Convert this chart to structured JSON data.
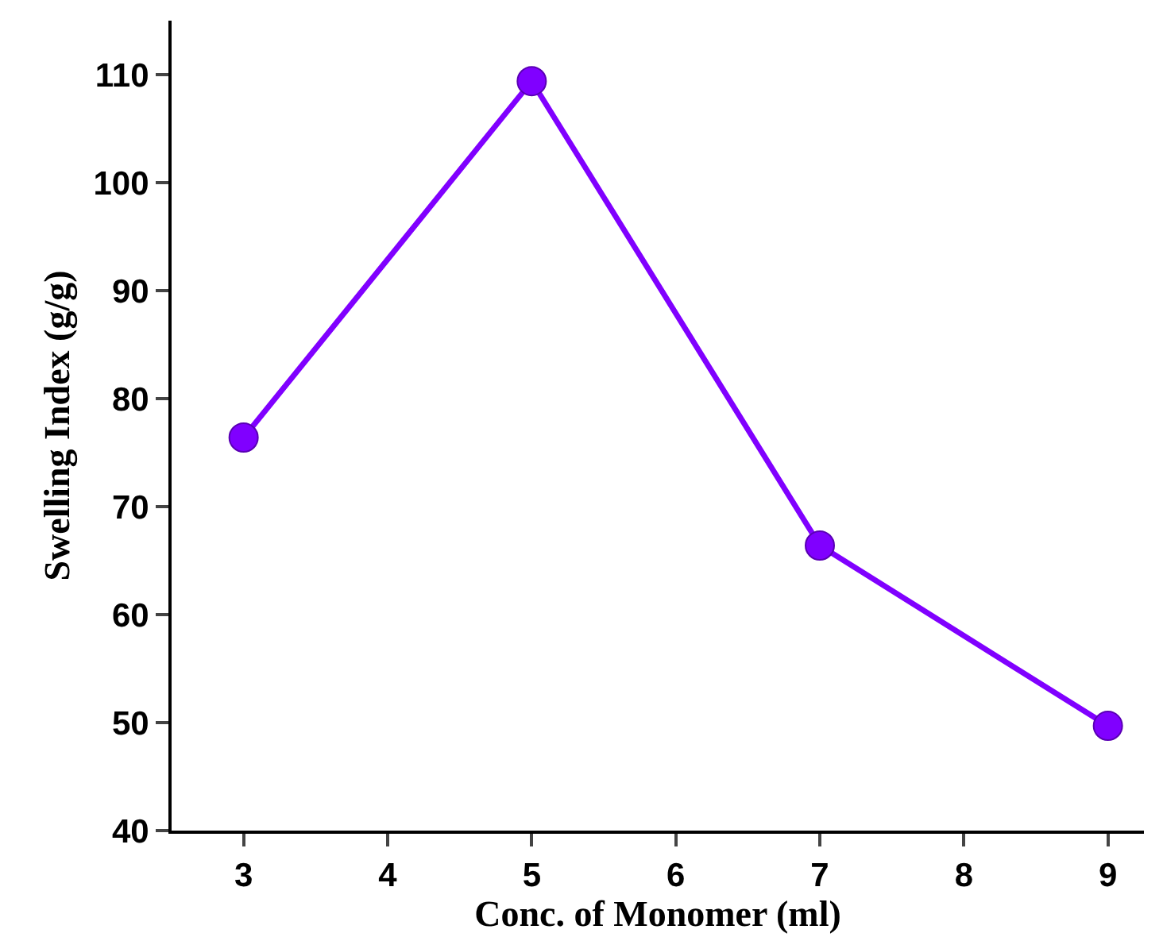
{
  "chart_data": {
    "type": "line",
    "xlabel": "Conc. of Monomer (ml)",
    "ylabel": "Swelling Index (g/g)",
    "x": [
      3,
      5,
      7,
      9
    ],
    "series": [
      {
        "color": "#8000ff",
        "values": [
          76.4,
          109.4,
          66.4,
          49.7
        ]
      }
    ],
    "xlim": [
      2.5,
      9.25
    ],
    "xticks": [
      3,
      4,
      5,
      6,
      7,
      8,
      9
    ],
    "ylim": [
      40,
      115
    ],
    "yticks": [
      40,
      50,
      60,
      70,
      80,
      90,
      100,
      110
    ],
    "marker": "circle",
    "line_style": "solid"
  }
}
